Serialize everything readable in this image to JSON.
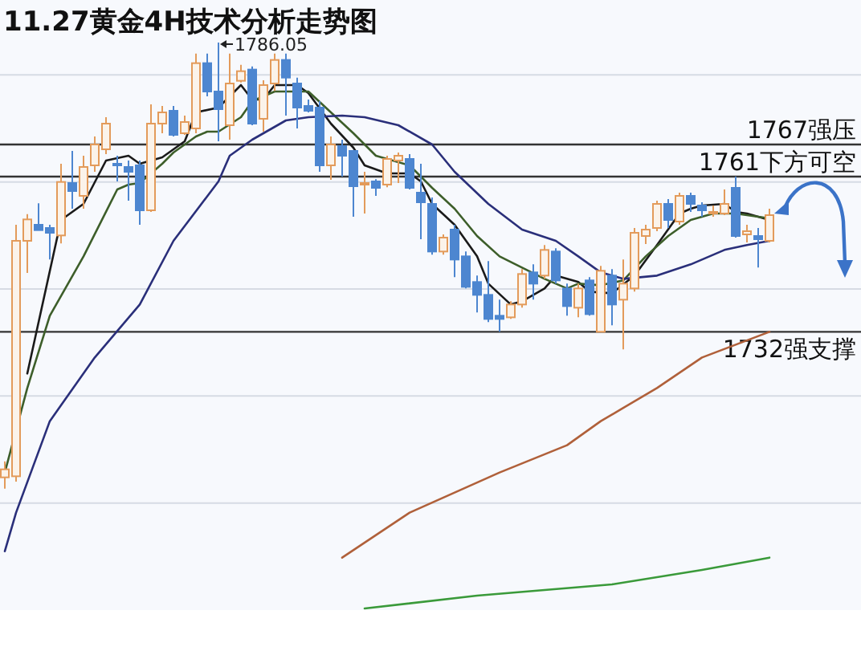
{
  "chart_data": {
    "type": "candlestick",
    "title": "11.27黄金4H技术分析走势图",
    "categories": [
      null,
      null,
      null,
      null,
      null,
      null,
      null,
      null,
      null,
      null,
      null,
      null,
      null,
      null,
      null,
      null,
      null,
      null,
      null,
      null,
      null,
      null,
      null,
      null,
      null,
      null,
      null,
      null,
      null,
      null,
      null,
      null,
      null,
      null,
      null,
      null,
      null,
      null,
      null,
      null,
      null,
      null,
      null,
      null,
      null,
      null,
      null,
      null,
      null,
      null,
      null,
      null,
      null,
      null,
      null,
      null,
      null,
      null,
      null,
      null,
      null,
      null,
      null,
      null,
      null,
      null,
      null,
      null,
      null
    ],
    "ylim": [
      1680,
      1794
    ],
    "yticks": [
      {
        "value": 1700,
        "label": null
      },
      {
        "value": 1720,
        "label": null
      },
      {
        "value": 1740,
        "label": null
      },
      {
        "value": 1760,
        "label": null
      },
      {
        "value": 1780,
        "label": null
      }
    ],
    "grid": "y",
    "series": [
      {
        "ohlc": [
          [
            1704.8,
            1707.8,
            1702.7,
            1706.3
          ],
          [
            1705,
            1752,
            1704,
            1749
          ],
          [
            1749,
            1754,
            1743,
            1753
          ],
          [
            1752,
            1756,
            1751,
            1751
          ],
          [
            1751.4,
            1752,
            1745.5,
            1750.5
          ],
          [
            1750,
            1763.4,
            1748.5,
            1760
          ],
          [
            1759.8,
            1765.8,
            1755,
            1758.3
          ],
          [
            1757.4,
            1764.9,
            1755,
            1762.8
          ],
          [
            1763.1,
            1768.5,
            1761.9,
            1767
          ],
          [
            1766.1,
            1772.1,
            1765.2,
            1770.9
          ],
          [
            1763.4,
            1764.9,
            1760.1,
            1763.1
          ],
          [
            1762.8,
            1764,
            1756.5,
            1761.9
          ],
          [
            1763.1,
            1764,
            1752,
            1754.7
          ],
          [
            1754.7,
            1774.5,
            1754.4,
            1770.9
          ],
          [
            1770.9,
            1774.2,
            1769.1,
            1773
          ],
          [
            1773.3,
            1774.2,
            1768.5,
            1768.8
          ],
          [
            1769.1,
            1772.4,
            1768.8,
            1771.2
          ],
          [
            1770,
            1784,
            1769.1,
            1782.2
          ],
          [
            1782.2,
            1784,
            1776,
            1776.9
          ],
          [
            1776.9,
            1786.05,
            1767.6,
            1773.6
          ],
          [
            1770.6,
            1784,
            1767.9,
            1778.4
          ],
          [
            1778.9,
            1781.9,
            1778.6,
            1780.7
          ],
          [
            1781,
            1781.6,
            1770.6,
            1770.9
          ],
          [
            1771.8,
            1779,
            1769.4,
            1778.1
          ],
          [
            1778.4,
            1784,
            1777,
            1782.8
          ],
          [
            1782.8,
            1784,
            1772.4,
            1779.5
          ],
          [
            1778.4,
            1779.5,
            1770,
            1773.9
          ],
          [
            1774.2,
            1775.4,
            1773,
            1773.3
          ],
          [
            1773.9,
            1775.1,
            1761.9,
            1763.1
          ],
          [
            1763.1,
            1768.5,
            1760.4,
            1767
          ],
          [
            1766.7,
            1767.9,
            1761,
            1764.9
          ],
          [
            1765.8,
            1766,
            1753.5,
            1759.2
          ],
          [
            1759.5,
            1761.9,
            1754.1,
            1759.8
          ],
          [
            1760.1,
            1760.5,
            1757.4,
            1758.9
          ],
          [
            1759.5,
            1764.9,
            1759,
            1764.3
          ],
          [
            1764,
            1765.5,
            1759.8,
            1764.9
          ],
          [
            1764.3,
            1765.2,
            1758.6,
            1758.9
          ],
          [
            1758,
            1763.4,
            1749.3,
            1756.2
          ],
          [
            1755.9,
            1757.1,
            1746.4,
            1747
          ],
          [
            1747,
            1750.2,
            1746.4,
            1749.6
          ],
          [
            1751.1,
            1752,
            1742.2,
            1745.5
          ],
          [
            1746.1,
            1747,
            1740.1,
            1740.4
          ],
          [
            1741.3,
            1742.5,
            1735.6,
            1738.9
          ],
          [
            1738.9,
            1745.2,
            1733.8,
            1734.4
          ],
          [
            1735,
            1738,
            1732,
            1734.4
          ],
          [
            1734.7,
            1737.7,
            1734.4,
            1737.1
          ],
          [
            1737.1,
            1743.7,
            1736.5,
            1742.8
          ],
          [
            1743.1,
            1744.6,
            1738,
            1741
          ],
          [
            1742.5,
            1748.2,
            1741.9,
            1747.3
          ],
          [
            1747,
            1747.6,
            1741,
            1741.6
          ],
          [
            1740.1,
            1741,
            1735,
            1736.8
          ],
          [
            1736.5,
            1741,
            1734.7,
            1740.1
          ],
          [
            1741.6,
            1742.2,
            1735,
            1735.3
          ],
          [
            1732,
            1744.3,
            1732,
            1743.4
          ],
          [
            1742.5,
            1743.7,
            1733.2,
            1737.1
          ],
          [
            1738,
            1745.5,
            1728.7,
            1741
          ],
          [
            1740.1,
            1751.4,
            1739.5,
            1750.5
          ],
          [
            1749.9,
            1752,
            1748.4,
            1751.1
          ],
          [
            1751.4,
            1756.5,
            1750.8,
            1755.9
          ],
          [
            1755.9,
            1756.8,
            1751.4,
            1752.9
          ],
          [
            1752.6,
            1758,
            1752,
            1757.4
          ],
          [
            1757.4,
            1758,
            1754.4,
            1755.9
          ],
          [
            1755.6,
            1756.2,
            1753.5,
            1754.7
          ],
          [
            1754.1,
            1755.6,
            1753.5,
            1754.4
          ],
          [
            1754.1,
            1758.6,
            1753.8,
            1755.9
          ],
          [
            1758.9,
            1761,
            1749.6,
            1749.9
          ],
          [
            1750.2,
            1752,
            1748.7,
            1750.8
          ],
          [
            1749.9,
            1751.4,
            1744,
            1749.3
          ],
          [
            1749,
            1755,
            1748.7,
            1753.8
          ]
        ],
        "colors": [
          "#e39b5b",
          "#e39b5b",
          "#e39b5b",
          "#4d86d0",
          "#4d86d0",
          "#e39b5b",
          "#4d86d0",
          "#e39b5b",
          "#e39b5b",
          "#e39b5b",
          "#4d86d0",
          "#4d86d0",
          "#4d86d0",
          "#e39b5b",
          "#e39b5b",
          "#4d86d0",
          "#e39b5b",
          "#e39b5b",
          "#4d86d0",
          "#4d86d0",
          "#e39b5b",
          "#e39b5b",
          "#4d86d0",
          "#e39b5b",
          "#e39b5b",
          "#4d86d0",
          "#4d86d0",
          "#4d86d0",
          "#4d86d0",
          "#e39b5b",
          "#4d86d0",
          "#4d86d0",
          "#e39b5b",
          "#4d86d0",
          "#e39b5b",
          "#e39b5b",
          "#4d86d0",
          "#4d86d0",
          "#4d86d0",
          "#e39b5b",
          "#4d86d0",
          "#4d86d0",
          "#4d86d0",
          "#4d86d0",
          "#4d86d0",
          "#e39b5b",
          "#e39b5b",
          "#4d86d0",
          "#e39b5b",
          "#4d86d0",
          "#4d86d0",
          "#e39b5b",
          "#4d86d0",
          "#e39b5b",
          "#4d86d0",
          "#e39b5b",
          "#e39b5b",
          "#e39b5b",
          "#e39b5b",
          "#4d86d0",
          "#e39b5b",
          "#4d86d0",
          "#4d86d0",
          "#e39b5b",
          "#e39b5b",
          "#4d86d0",
          "#e39b5b",
          "#4d86d0",
          "#e39b5b"
        ]
      },
      {
        "type": "line",
        "color": "#1a1a1a",
        "values": [
          null,
          null,
          1724.2,
          null,
          null,
          1752.9,
          null,
          1755.9,
          null,
          1764,
          null,
          1764.9,
          1763.4,
          null,
          1764.6,
          null,
          1767.6,
          1773,
          null,
          1773.9,
          null,
          1778.1,
          1775.4,
          1775.4,
          1778.1,
          null,
          1778.1,
          1776.6,
          null,
          1770.9,
          null,
          1766.4,
          1763.1,
          null,
          1761.6,
          null,
          1761.6,
          1760.1,
          1755.9,
          null,
          1752,
          null,
          1746.1,
          1741,
          null,
          1737.1,
          1737.7,
          null,
          1740.1,
          1742.5,
          null,
          1741.3,
          1739.5,
          null,
          1739.2,
          null,
          1742.5,
          null,
          1748.2,
          null,
          1754.1,
          1755,
          1755.6,
          null,
          1755.9,
          1754.4,
          1754.1,
          null,
          1752.9
        ]
      },
      {
        "type": "line",
        "color": "#3d5e2a",
        "values": [
          1705.7,
          null,
          1721.5,
          null,
          1735,
          null,
          null,
          1746.1,
          null,
          null,
          1758.6,
          1759.5,
          1759.8,
          null,
          1763.4,
          1765.5,
          null,
          1768.5,
          1769.4,
          1769.4,
          null,
          1772.1,
          1775.1,
          null,
          1776.9,
          null,
          null,
          1776.9,
          null,
          1773,
          null,
          1769.1,
          null,
          1764.9,
          null,
          null,
          1763.1,
          null,
          1758.9,
          null,
          1755,
          null,
          1749.9,
          null,
          1746.1,
          null,
          1744,
          null,
          1741.9,
          null,
          1740.1,
          1741,
          null,
          1740.7,
          null,
          1741.6,
          null,
          1746.1,
          null,
          1749.9,
          null,
          1752.9,
          null,
          1754.1,
          null,
          1754.1,
          null,
          1753.5,
          1753.2
        ]
      },
      {
        "type": "line",
        "color": "#2a2f7a",
        "values": [
          1691,
          1698.2,
          null,
          null,
          1715.3,
          null,
          null,
          null,
          1727.2,
          null,
          null,
          null,
          1737.1,
          null,
          null,
          1749,
          null,
          null,
          null,
          1760.1,
          1764.9,
          null,
          1767.9,
          null,
          null,
          1771.5,
          null,
          1772.1,
          null,
          null,
          1772.4,
          null,
          1772.1,
          null,
          null,
          1770.6,
          null,
          null,
          1767,
          null,
          1761.9,
          null,
          null,
          1755.9,
          null,
          null,
          1751.1,
          null,
          null,
          1749,
          null,
          1746.1,
          null,
          1743.1,
          null,
          1741.9,
          null,
          null,
          1742.5,
          null,
          null,
          1744.6,
          null,
          null,
          1747.3,
          null,
          1748.2,
          null,
          1749
        ]
      },
      {
        "type": "line",
        "color": "#b0603a",
        "values": [
          null,
          null,
          null,
          null,
          null,
          null,
          null,
          null,
          null,
          null,
          null,
          null,
          null,
          null,
          null,
          null,
          null,
          null,
          null,
          null,
          null,
          null,
          null,
          null,
          null,
          null,
          null,
          null,
          null,
          null,
          1689.8,
          null,
          null,
          null,
          null,
          null,
          1698.2,
          null,
          null,
          null,
          null,
          null,
          null,
          null,
          1705.7,
          null,
          null,
          null,
          null,
          null,
          1710.8,
          null,
          null,
          1715.3,
          null,
          null,
          null,
          null,
          1721.5,
          null,
          null,
          null,
          1727.2,
          null,
          null,
          null,
          null,
          null,
          1732
        ]
      },
      {
        "type": "line",
        "color": "#3a9a3a",
        "values": [
          null,
          null,
          null,
          null,
          null,
          null,
          null,
          null,
          null,
          null,
          null,
          null,
          null,
          null,
          null,
          null,
          null,
          null,
          null,
          null,
          null,
          null,
          null,
          null,
          null,
          null,
          null,
          null,
          null,
          null,
          null,
          null,
          1680.3,
          null,
          null,
          null,
          null,
          null,
          null,
          null,
          null,
          null,
          1682.7,
          null,
          null,
          null,
          null,
          null,
          null,
          null,
          null,
          null,
          null,
          null,
          1684.8,
          null,
          null,
          null,
          null,
          null,
          null,
          null,
          1687.5,
          null,
          null,
          null,
          null,
          null,
          1689.8
        ]
      }
    ],
    "ref_lines": [
      {
        "axis": "y",
        "value": 1767,
        "label": "1767强压",
        "color": "#333333"
      },
      {
        "axis": "y",
        "value": 1761,
        "label": "1761下方可空",
        "color": "#333333"
      },
      {
        "axis": "y",
        "value": 1732,
        "label": "1732强支撑",
        "color": "#333333"
      }
    ],
    "annotations": [
      "1786.05"
    ]
  }
}
